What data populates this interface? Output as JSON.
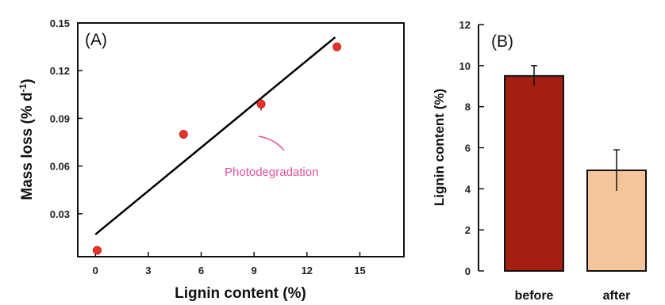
{
  "chart_data": [
    {
      "type": "scatter",
      "panel_label": "(A)",
      "xlabel": "Lignin content (%)",
      "ylabel": "Mass loss (% d",
      "ylabel_sup": "-1",
      "ylabel_close": ")",
      "xlim": [
        -1,
        17.5
      ],
      "ylim": [
        0.003,
        0.15
      ],
      "xticks": [
        "0",
        "3",
        "6",
        "9",
        "12",
        "15"
      ],
      "yticks": [
        "0.03",
        "0.06",
        "0.09",
        "0.12",
        "0.15"
      ],
      "points": [
        {
          "x": 0.1,
          "y": 0.007,
          "err": 0.002
        },
        {
          "x": 5.0,
          "y": 0.08,
          "err": 0.002
        },
        {
          "x": 9.4,
          "y": 0.099,
          "err": 0.004
        },
        {
          "x": 13.7,
          "y": 0.135,
          "err": 0.002
        }
      ],
      "fit_line": {
        "x": [
          0,
          13.6
        ],
        "y": [
          0.017,
          0.141
        ]
      },
      "annotation": "Photodegradation",
      "point_color": "#e8332d",
      "annotation_color": "#e0509a"
    },
    {
      "type": "bar",
      "panel_label": "(B)",
      "ylabel": "Lignin content (%)",
      "categories": [
        "before",
        "after"
      ],
      "values": [
        9.5,
        4.9
      ],
      "errors": [
        0.5,
        1.0
      ],
      "colors": [
        "#a31f0f",
        "#f5c49a"
      ],
      "ylim": [
        0,
        12
      ],
      "yticks": [
        "0",
        "2",
        "4",
        "6",
        "8",
        "10",
        "12"
      ]
    }
  ]
}
